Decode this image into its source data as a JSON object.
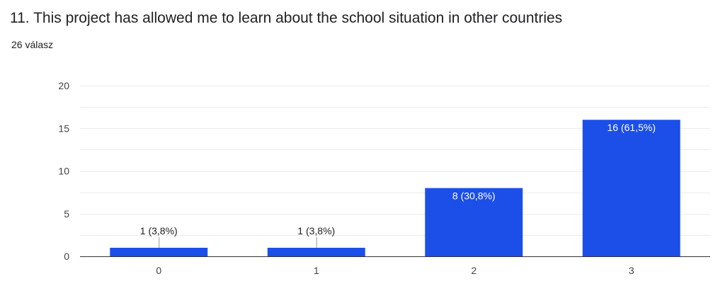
{
  "question": {
    "title": "11. This project has allowed me to learn about the school situation in other countries",
    "responses": "26 válasz"
  },
  "colors": {
    "bar": "#1c4fe8",
    "grid": "#ebebeb",
    "axis": "#333333",
    "label_outside": "#202124",
    "label_inside": "#ffffff"
  },
  "chart_data": {
    "type": "bar",
    "categories": [
      "0",
      "1",
      "2",
      "3"
    ],
    "values": [
      1,
      1,
      8,
      16
    ],
    "labels": [
      "1 (3,8%)",
      "1 (3,8%)",
      "8 (30,8%)",
      "16 (61,5%)"
    ],
    "yticks": [
      "0",
      "5",
      "10",
      "15",
      "20"
    ],
    "ylim": [
      0,
      20
    ],
    "title": "",
    "xlabel": "",
    "ylabel": "",
    "grid": true
  }
}
